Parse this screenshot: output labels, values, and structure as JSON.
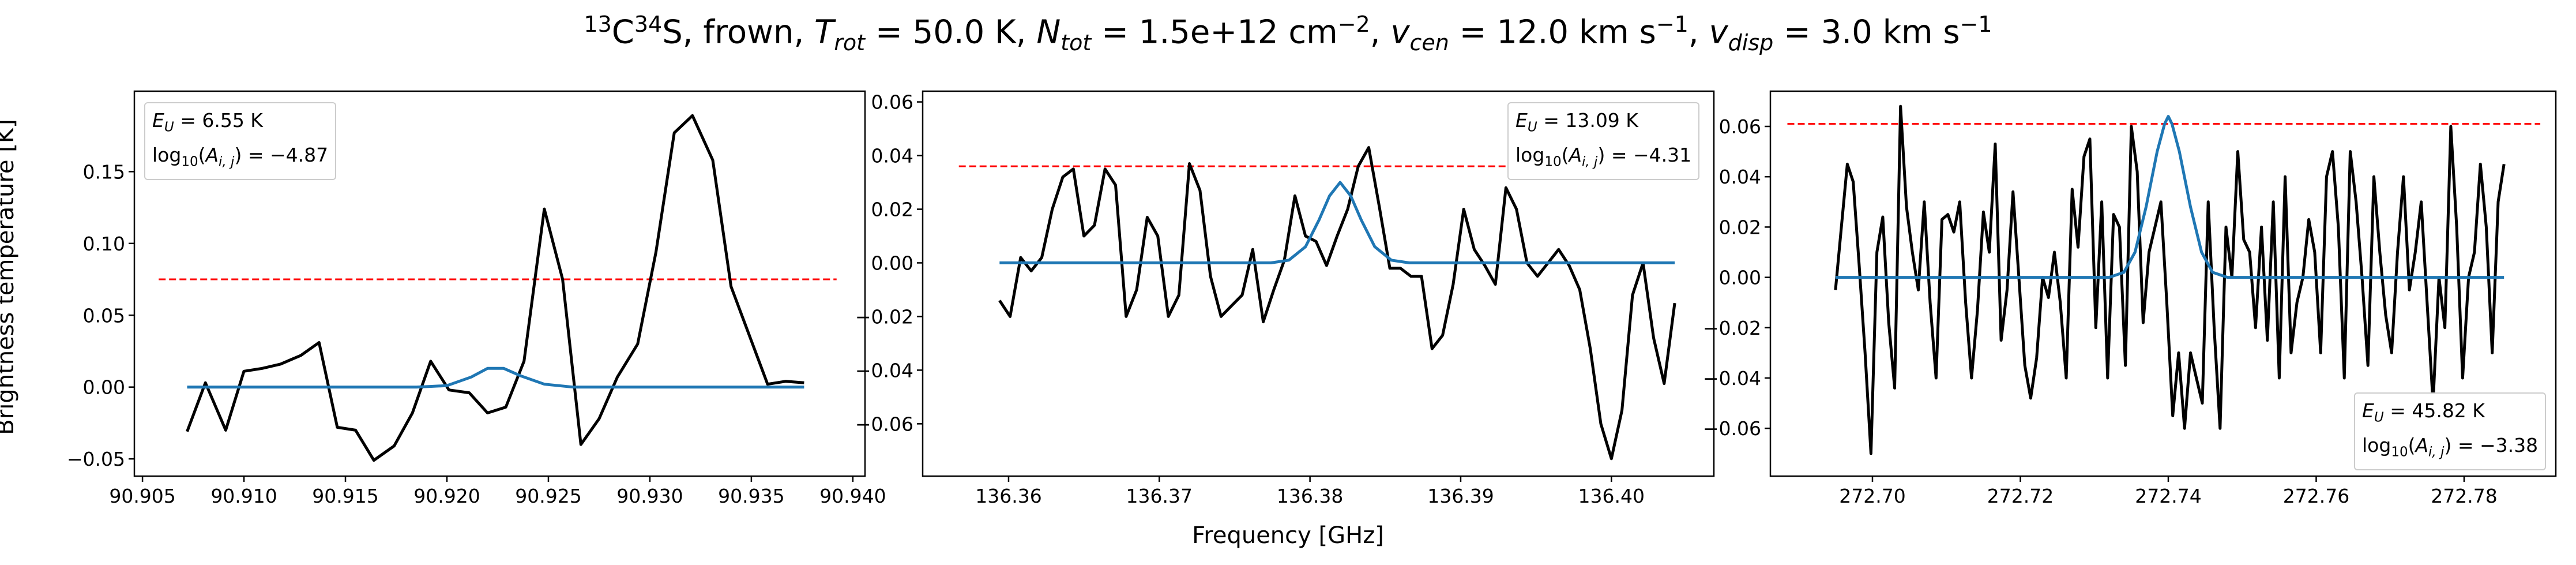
{
  "figure": {
    "suptitle": {
      "sup13": "13",
      "c": "C",
      "sup34": "34",
      "after_species": "S, frown, ",
      "trot_var": "T",
      "trot_sub": "rot",
      "trot_val": " =  50.0 K, ",
      "ntot_var": "N",
      "ntot_sub": "tot",
      "ntot_val": " =  1.5e+12 cm",
      "ntot_exp": "−2",
      "ntot_end": ", ",
      "vcen_var": "v",
      "vcen_sub": "cen",
      "vcen_val": " =  12.0 km s",
      "vcen_exp": "−1",
      "vcen_end": ", ",
      "vdisp_var": "v",
      "vdisp_sub": "disp",
      "vdisp_val": " =  3.0 km s",
      "vdisp_exp": "−1"
    },
    "ylabel": "Brightness temperature [K]",
    "xlabel": "Frequency [GHz]"
  },
  "colors": {
    "data": "#000000",
    "model": "#1f77b4",
    "threshold": "#ff0000",
    "frame": "#000000"
  },
  "panels": [
    {
      "legend": {
        "eu_var": "E",
        "eu_sub": "U",
        "eu_val": " = 6.55 K",
        "log_a": "log",
        "log_sub": "10",
        "log_b": "(",
        "log_var": "A",
        "log_sub2": "i, j",
        "log_c": ") = −4.87"
      },
      "chart_data": {
        "type": "line",
        "xlim": [
          90.9046,
          90.9406
        ],
        "ylim": [
          -0.062,
          0.206
        ],
        "xticks": [
          90.905,
          90.91,
          90.915,
          90.92,
          90.925,
          90.93,
          90.935,
          90.94
        ],
        "xtick_labels": [
          "90.905",
          "90.910",
          "90.915",
          "90.920",
          "90.925",
          "90.930",
          "90.935",
          "90.940"
        ],
        "yticks": [
          -0.05,
          0.0,
          0.05,
          0.1,
          0.15
        ],
        "ytick_labels": [
          "−0.05",
          "0.00",
          "0.05",
          "0.10",
          "0.15"
        ],
        "threshold": {
          "y": 0.075,
          "x": [
            90.9058,
            90.9392
          ]
        },
        "series": [
          {
            "role": "data",
            "x": [
              90.9072,
              90.9081,
              90.9091,
              90.91,
              90.9109,
              90.9118,
              90.9128,
              90.9137,
              90.9146,
              90.9155,
              90.9164,
              90.9174,
              90.9183,
              90.9192,
              90.9201,
              90.9211,
              90.922,
              90.9229,
              90.9238,
              90.9248,
              90.9257,
              90.9266,
              90.9275,
              90.9284,
              90.9294,
              90.9303,
              90.9312,
              90.9321,
              90.9331,
              90.934,
              90.9349,
              90.9358,
              90.9367,
              90.9376
            ],
            "y": [
              -0.031,
              0.003,
              -0.03,
              0.011,
              0.013,
              0.016,
              0.022,
              0.031,
              -0.028,
              -0.03,
              -0.051,
              -0.041,
              -0.018,
              0.018,
              -0.002,
              -0.004,
              -0.018,
              -0.014,
              0.018,
              0.124,
              0.075,
              -0.04,
              -0.022,
              0.007,
              0.03,
              0.094,
              0.177,
              0.189,
              0.158,
              0.07,
              0.036,
              0.002,
              0.004,
              0.003
            ]
          },
          {
            "role": "model",
            "x": [
              90.9072,
              90.9185,
              90.92,
              90.9212,
              90.922,
              90.9228,
              90.9236,
              90.9248,
              90.9262,
              90.9376
            ],
            "y": [
              0.0,
              0.0,
              0.001,
              0.007,
              0.013,
              0.013,
              0.008,
              0.002,
              0.0,
              0.0
            ]
          }
        ]
      }
    },
    {
      "legend": {
        "eu_var": "E",
        "eu_sub": "U",
        "eu_val": " = 13.09 K",
        "log_a": "log",
        "log_sub": "10",
        "log_b": "(",
        "log_var": "A",
        "log_sub2": "i, j",
        "log_c": ") = −4.31"
      },
      "chart_data": {
        "type": "line",
        "xlim": [
          136.3543,
          136.4068
        ],
        "ylim": [
          -0.0795,
          0.064
        ],
        "xticks": [
          136.36,
          136.37,
          136.38,
          136.39,
          136.4
        ],
        "xtick_labels": [
          "136.36",
          "136.37",
          "136.38",
          "136.39",
          "136.40"
        ],
        "yticks": [
          -0.06,
          -0.04,
          -0.02,
          0.0,
          0.02,
          0.04,
          0.06
        ],
        "ytick_labels": [
          "−0.06",
          "−0.04",
          "−0.02",
          "0.00",
          "0.02",
          "0.04",
          "0.06"
        ],
        "threshold": {
          "y": 0.036,
          "x": [
            136.3567,
            136.4044
          ]
        },
        "series": [
          {
            "role": "data",
            "x": [
              136.3594,
              136.3601,
              136.3608,
              136.3615,
              136.3622,
              136.3629,
              136.3636,
              136.3643,
              136.365,
              136.3657,
              136.3664,
              136.3671,
              136.3678,
              136.3685,
              136.3692,
              136.3699,
              136.3706,
              136.3713,
              136.372,
              136.3727,
              136.3734,
              136.3741,
              136.3748,
              136.3755,
              136.3762,
              136.3769,
              136.3776,
              136.3783,
              136.379,
              136.3797,
              136.3804,
              136.3811,
              136.3818,
              136.3825,
              136.3832,
              136.3839,
              136.3846,
              136.3853,
              136.386,
              136.3867,
              136.3874,
              136.3881,
              136.3888,
              136.3895,
              136.3902,
              136.3909,
              136.3916,
              136.3923,
              136.393,
              136.3937,
              136.3944,
              136.3951,
              136.3958,
              136.3965,
              136.3972,
              136.3979,
              136.3986,
              136.3993,
              136.4,
              136.4007,
              136.4014,
              136.4021,
              136.4028,
              136.4035,
              136.4042
            ],
            "y": [
              -0.014,
              -0.02,
              0.002,
              -0.003,
              0.002,
              0.02,
              0.032,
              0.035,
              0.01,
              0.014,
              0.035,
              0.029,
              -0.02,
              -0.01,
              0.017,
              0.01,
              -0.02,
              -0.012,
              0.037,
              0.027,
              -0.005,
              -0.02,
              -0.016,
              -0.012,
              0.005,
              -0.022,
              -0.01,
              0.001,
              0.025,
              0.01,
              0.008,
              -0.001,
              0.01,
              0.02,
              0.036,
              0.043,
              0.021,
              -0.002,
              -0.002,
              -0.005,
              -0.005,
              -0.032,
              -0.027,
              -0.008,
              0.02,
              0.005,
              -0.001,
              -0.008,
              0.028,
              0.02,
              0.0,
              -0.005,
              0.0,
              0.005,
              -0.001,
              -0.01,
              -0.032,
              -0.06,
              -0.073,
              -0.055,
              -0.012,
              0.0,
              -0.028,
              -0.045,
              -0.015
            ]
          },
          {
            "role": "model",
            "x": [
              136.3594,
              136.3774,
              136.3786,
              136.3797,
              136.3806,
              136.3813,
              136.382,
              136.3827,
              136.3834,
              136.3843,
              136.3854,
              136.3866,
              136.4042
            ],
            "y": [
              0.0,
              0.0,
              0.001,
              0.006,
              0.016,
              0.025,
              0.03,
              0.025,
              0.016,
              0.006,
              0.001,
              0.0,
              0.0
            ]
          }
        ]
      }
    },
    {
      "legend": {
        "eu_var": "E",
        "eu_sub": "U",
        "eu_val": " = 45.82 K",
        "log_a": "log",
        "log_sub": "10",
        "log_b": "(",
        "log_var": "A",
        "log_sub2": "i, j",
        "log_c": ") = −3.38"
      },
      "chart_data": {
        "type": "line",
        "xlim": [
          272.6862,
          272.7924
        ],
        "ylim": [
          -0.079,
          0.074
        ],
        "xticks": [
          272.7,
          272.72,
          272.74,
          272.76,
          272.78
        ],
        "xtick_labels": [
          "272.70",
          "272.72",
          "272.74",
          "272.76",
          "272.78"
        ],
        "yticks": [
          -0.06,
          -0.04,
          -0.02,
          0.0,
          0.02,
          0.04,
          0.06
        ],
        "ytick_labels": [
          "−0.06",
          "−0.04",
          "−0.02",
          "0.00",
          "0.02",
          "0.04",
          "0.06"
        ],
        "threshold": {
          "y": 0.061,
          "x": [
            272.6885,
            272.7903
          ]
        },
        "series": [
          {
            "role": "data",
            "x": [
              272.695,
              272.6958,
              272.6966,
              272.6974,
              272.6982,
              272.699,
              272.6998,
              272.7006,
              272.7014,
              272.7022,
              272.703,
              272.7038,
              272.7046,
              272.7054,
              272.7062,
              272.707,
              272.7078,
              272.7086,
              272.7094,
              272.7102,
              272.711,
              272.7118,
              272.7126,
              272.7134,
              272.7142,
              272.715,
              272.7158,
              272.7166,
              272.7174,
              272.7182,
              272.719,
              272.7198,
              272.7206,
              272.7214,
              272.7222,
              272.723,
              272.7238,
              272.7246,
              272.7254,
              272.7262,
              272.727,
              272.7278,
              272.7286,
              272.7294,
              272.7302,
              272.731,
              272.7318,
              272.7326,
              272.7334,
              272.7342,
              272.735,
              272.7358,
              272.7366,
              272.7374,
              272.7382,
              272.739,
              272.7398,
              272.7406,
              272.7414,
              272.7422,
              272.743,
              272.7438,
              272.7446,
              272.7454,
              272.7462,
              272.747,
              272.7478,
              272.7486,
              272.7494,
              272.7502,
              272.751,
              272.7518,
              272.7526,
              272.7534,
              272.7542,
              272.755,
              272.7558,
              272.7566,
              272.7574,
              272.7582,
              272.759,
              272.7598,
              272.7606,
              272.7614,
              272.7622,
              272.763,
              272.7638,
              272.7646,
              272.7654,
              272.7662,
              272.767,
              272.7678,
              272.7686,
              272.7694,
              272.7702,
              272.771,
              272.7718,
              272.7726,
              272.7734,
              272.7742,
              272.775,
              272.7758,
              272.7766,
              272.7774,
              272.7782,
              272.779,
              272.7798,
              272.7806,
              272.7814,
              272.7822,
              272.783,
              272.7838,
              272.7846,
              272.7854
            ],
            "y": [
              -0.005,
              0.02,
              0.045,
              0.038,
              0.005,
              -0.03,
              -0.07,
              0.01,
              0.024,
              -0.018,
              -0.044,
              0.068,
              0.028,
              0.01,
              -0.005,
              0.03,
              -0.01,
              -0.04,
              0.023,
              0.025,
              0.018,
              0.03,
              -0.01,
              -0.04,
              -0.013,
              0.026,
              0.01,
              0.053,
              -0.025,
              -0.005,
              0.034,
              0.0,
              -0.035,
              -0.048,
              -0.032,
              0.0,
              -0.008,
              0.01,
              -0.01,
              -0.04,
              0.035,
              0.012,
              0.048,
              0.055,
              -0.02,
              0.03,
              -0.04,
              0.025,
              0.02,
              -0.035,
              0.06,
              0.042,
              -0.018,
              0.01,
              0.02,
              0.03,
              -0.01,
              -0.055,
              -0.03,
              -0.06,
              -0.03,
              -0.04,
              -0.05,
              0.03,
              -0.02,
              -0.06,
              0.02,
              0.0,
              0.05,
              0.015,
              0.01,
              -0.02,
              0.02,
              -0.025,
              0.03,
              -0.04,
              0.04,
              -0.03,
              -0.01,
              0.0,
              0.023,
              0.01,
              -0.03,
              0.04,
              0.05,
              0.02,
              -0.04,
              0.05,
              0.03,
              0.0,
              -0.035,
              0.04,
              0.01,
              -0.015,
              -0.03,
              0.01,
              0.04,
              -0.005,
              0.01,
              0.03,
              -0.01,
              -0.05,
              0.0,
              -0.02,
              0.06,
              0.02,
              -0.04,
              0.0,
              0.01,
              0.045,
              0.02,
              -0.03,
              0.03,
              0.045
            ]
          },
          {
            "role": "model",
            "x": [
              272.695,
              272.732,
              272.734,
              272.7355,
              272.737,
              272.7385,
              272.7395,
              272.74,
              272.7405,
              272.7415,
              272.743,
              272.7445,
              272.746,
              272.748,
              272.7854
            ],
            "y": [
              0.0,
              0.0,
              0.002,
              0.01,
              0.028,
              0.05,
              0.061,
              0.064,
              0.061,
              0.05,
              0.028,
              0.01,
              0.002,
              0.0,
              0.0
            ]
          }
        ]
      }
    }
  ]
}
